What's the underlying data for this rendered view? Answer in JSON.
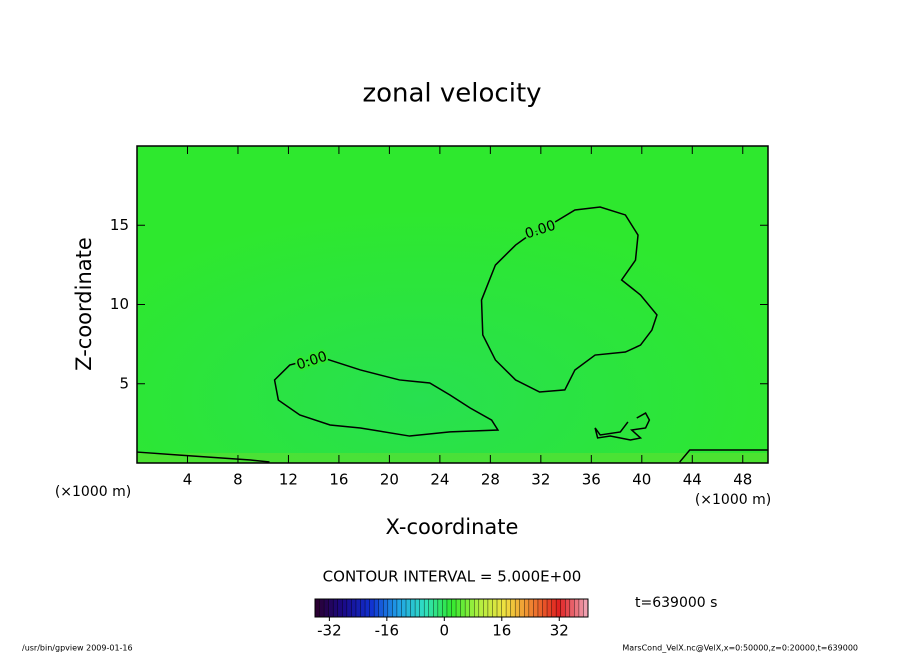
{
  "chart_data": {
    "type": "contour",
    "title": "zonal velocity",
    "x_label": "X-coordinate",
    "y_label": "Z-coordinate",
    "x_unit": "(×1000 m)",
    "xlim": [
      0,
      50
    ],
    "ylim": [
      0,
      20
    ],
    "xticks": [
      4,
      8,
      12,
      16,
      20,
      24,
      28,
      32,
      36,
      40,
      44,
      48
    ],
    "yticks": [
      5,
      10,
      15
    ],
    "field_color": "#2ee82e",
    "line_color": "#000000",
    "contours": [
      {
        "label": "0.00",
        "x": [
          14.5,
          12.1,
          10.9,
          11.2,
          12.9,
          15.3,
          17.7,
          21.6,
          24.8,
          28.6,
          28.1,
          26.4,
          24.8,
          23.2,
          20.8,
          17.7,
          14.5
        ],
        "y": [
          6.69,
          6.18,
          5.24,
          3.97,
          3.03,
          2.4,
          2.21,
          1.7,
          1.96,
          2.08,
          2.71,
          3.47,
          4.29,
          5.05,
          5.24,
          5.87,
          6.69
        ]
      },
      {
        "label": "0.00",
        "x": [
          32.6,
          34.7,
          36.7,
          38.7,
          39.7,
          39.5,
          38.4,
          39.9,
          41.2,
          40.8,
          39.9,
          38.7,
          36.3,
          34.7,
          33.9,
          31.9,
          30.0,
          28.4,
          27.4,
          27.3,
          28.4,
          30.0,
          31.1,
          32.6
        ],
        "y": [
          14.95,
          15.96,
          16.15,
          15.65,
          14.38,
          12.8,
          11.55,
          10.6,
          9.34,
          8.39,
          7.44,
          7.0,
          6.81,
          5.87,
          4.61,
          4.48,
          5.24,
          6.5,
          8.08,
          10.28,
          12.49,
          13.75,
          14.38,
          14.95
        ]
      },
      {
        "x": [
          39.6,
          40.3,
          40.6,
          40.3,
          39.2,
          39.9,
          39.1,
          37.5,
          36.5,
          36.3,
          36.7,
          38.3,
          38.9
        ],
        "y": [
          2.84,
          3.15,
          2.71,
          2.21,
          2.08,
          1.58,
          1.45,
          1.7,
          1.58,
          2.21,
          1.77,
          1.96,
          2.59
        ]
      },
      {
        "x": [
          0,
          3.4,
          9.0,
          10.5
        ],
        "y": [
          0.69,
          0.5,
          0.19,
          0.06
        ]
      },
      {
        "x": [
          43.0,
          43.8,
          46.2,
          50
        ],
        "y": [
          0.06,
          0.82,
          0.82,
          0.82
        ]
      }
    ],
    "contour_interval": "CONTOUR INTERVAL = 5.000E+00",
    "time_label": "t=639000 s",
    "colorbar": {
      "clim": [
        -36,
        40
      ],
      "ticks": [
        -32,
        -16,
        0,
        16,
        32
      ],
      "colors": [
        "#2a0033",
        "#1a0a8a",
        "#1030d0",
        "#20a0e8",
        "#30e0c0",
        "#30e830",
        "#b0f040",
        "#f0e040",
        "#f08030",
        "#e02020",
        "#f0a0b0"
      ]
    },
    "footer_left": "/usr/bin/gpview  2009-01-16",
    "footer_right": "MarsCond_VelX.nc@VelX,x=0:50000,z=0:20000,t=639000"
  }
}
